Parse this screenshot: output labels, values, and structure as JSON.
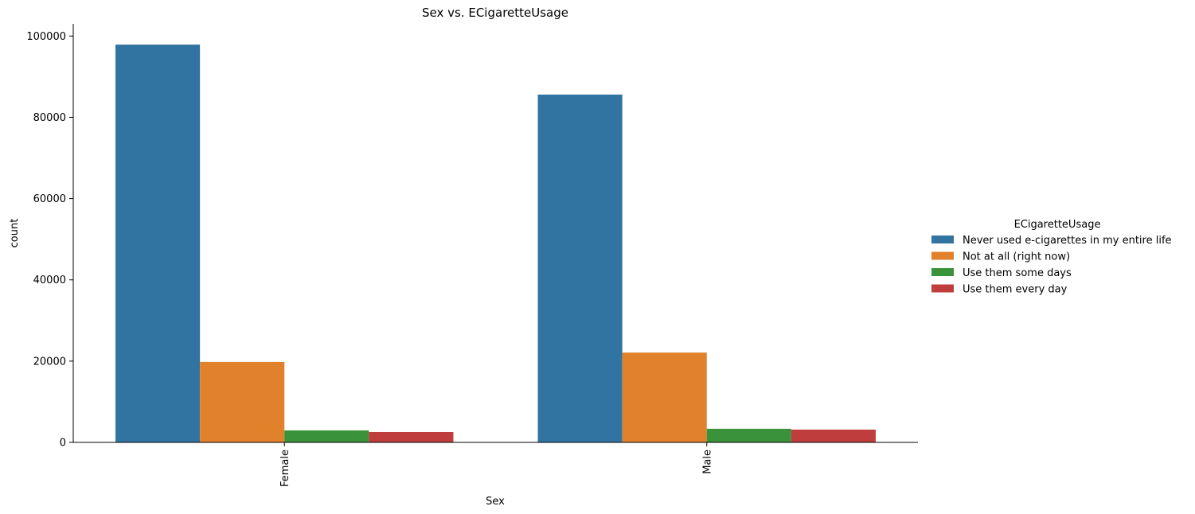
{
  "chart_data": {
    "type": "bar",
    "title": "Sex vs. ECigaretteUsage",
    "xlabel": "Sex",
    "ylabel": "count",
    "categories": [
      "Female",
      "Male"
    ],
    "series": [
      {
        "name": "Never used e-cigarettes in my entire life",
        "color": "#3274a1",
        "values": [
          97900,
          85600
        ]
      },
      {
        "name": "Not at all (right now)",
        "color": "#e1812c",
        "values": [
          19800,
          22100
        ]
      },
      {
        "name": "Use them some days",
        "color": "#3a923a",
        "values": [
          2950,
          3350
        ]
      },
      {
        "name": "Use them every day",
        "color": "#c03d3e",
        "values": [
          2550,
          3150
        ]
      }
    ],
    "ylim": [
      0,
      103000
    ],
    "yticks": [
      0,
      20000,
      40000,
      60000,
      80000,
      100000
    ],
    "ytick_labels": [
      "0",
      "20000",
      "40000",
      "60000",
      "80000",
      "100000"
    ],
    "legend_title": "ECigaretteUsage",
    "legend_position": "right",
    "grid": false,
    "xtick_rotation": "vertical"
  }
}
